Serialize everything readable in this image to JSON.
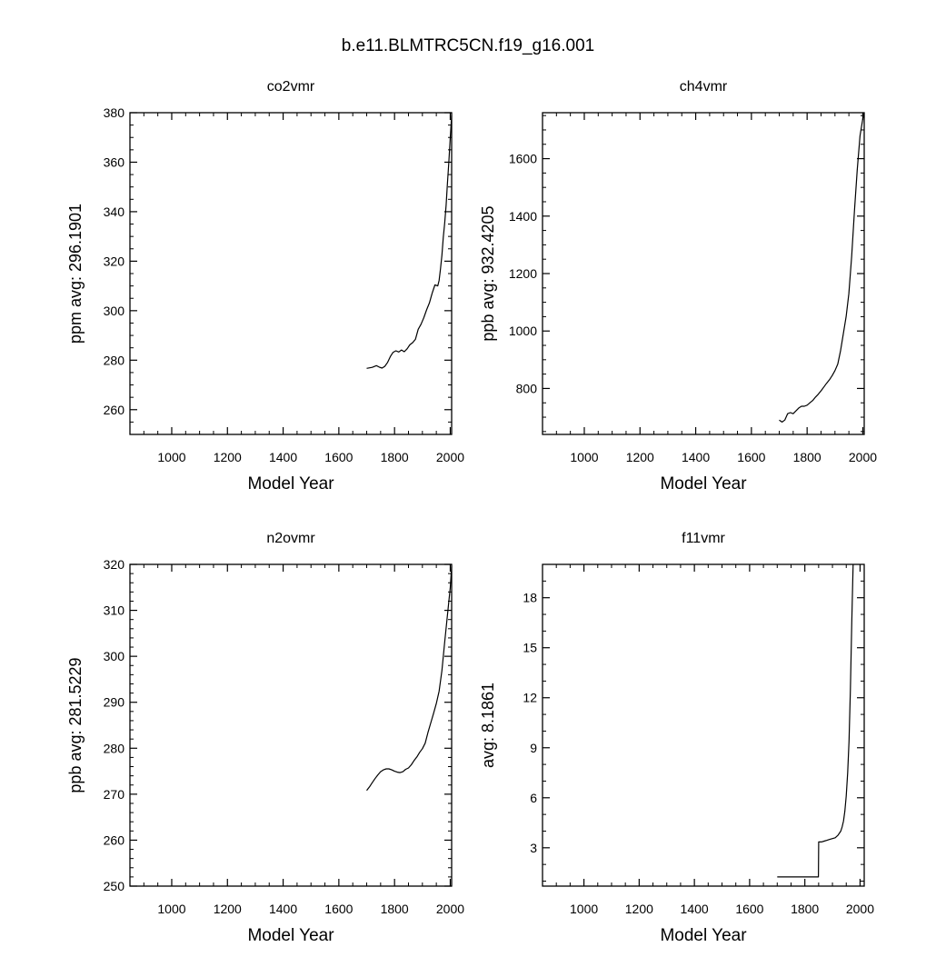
{
  "page": {
    "title": "b.e11.BLMTRC5CN.f19_g16.001"
  },
  "chart_data": [
    {
      "type": "line",
      "title": "co2vmr",
      "xlabel": "Model Year",
      "ylabel": "ppm  avg:    296.1901",
      "xlim": [
        850,
        2005
      ],
      "ylim": [
        250,
        380
      ],
      "x_ticks": [
        1000,
        1200,
        1400,
        1600,
        1800,
        2000
      ],
      "y_ticks": [
        260,
        280,
        300,
        320,
        340,
        360,
        380
      ],
      "x_minor": 50,
      "y_minor": 5,
      "series": [
        {
          "x": [
            1700,
            1720,
            1735,
            1745,
            1755,
            1765,
            1775,
            1785,
            1795,
            1805,
            1815,
            1825,
            1835,
            1845,
            1855,
            1865,
            1875,
            1885,
            1895,
            1905,
            1915,
            1925,
            1935,
            1945,
            1955,
            1960,
            1965,
            1970,
            1975,
            1980,
            1985,
            1990,
            1995,
            2000,
            2005
          ],
          "values": [
            276.7,
            277.1,
            277.8,
            277.2,
            276.8,
            277.5,
            279.1,
            281.5,
            283.2,
            283.8,
            283.3,
            284.1,
            283.4,
            284.6,
            286.2,
            287.1,
            288.5,
            292.5,
            294.5,
            297.2,
            300.3,
            303.1,
            307.0,
            310.4,
            310.0,
            312.2,
            316.8,
            322.4,
            329.6,
            335.2,
            342.5,
            351.7,
            360.0,
            370.0,
            378.8
          ]
        }
      ]
    },
    {
      "type": "line",
      "title": "ch4vmr",
      "xlabel": "Model Year",
      "ylabel": "ppb  avg:    932.4205",
      "xlim": [
        850,
        2005
      ],
      "ylim": [
        640,
        1760
      ],
      "x_ticks": [
        1000,
        1200,
        1400,
        1600,
        1800,
        2000
      ],
      "y_ticks": [
        800,
        1000,
        1200,
        1400,
        1600
      ],
      "x_minor": 50,
      "y_minor": 50,
      "series": [
        {
          "x": [
            1700,
            1710,
            1720,
            1730,
            1740,
            1750,
            1760,
            1770,
            1780,
            1790,
            1800,
            1810,
            1820,
            1830,
            1840,
            1850,
            1860,
            1870,
            1880,
            1890,
            1900,
            1910,
            1920,
            1930,
            1940,
            1950,
            1960,
            1970,
            1980,
            1990,
            2000,
            2005
          ],
          "values": [
            690,
            683,
            690,
            712,
            716,
            712,
            722,
            732,
            738,
            738,
            742,
            750,
            758,
            770,
            780,
            792,
            805,
            818,
            830,
            845,
            862,
            885,
            930,
            990,
            1050,
            1130,
            1260,
            1420,
            1560,
            1680,
            1740,
            1760
          ]
        }
      ]
    },
    {
      "type": "line",
      "title": "n2ovmr",
      "xlabel": "Model Year",
      "ylabel": "ppb  avg:    281.5229",
      "xlim": [
        850,
        2005
      ],
      "ylim": [
        250,
        320
      ],
      "x_ticks": [
        1000,
        1200,
        1400,
        1600,
        1800,
        2000
      ],
      "y_ticks": [
        250,
        260,
        270,
        280,
        290,
        300,
        310,
        320
      ],
      "x_minor": 50,
      "y_minor": 2,
      "series": [
        {
          "x": [
            1700,
            1710,
            1720,
            1730,
            1740,
            1750,
            1760,
            1770,
            1780,
            1790,
            1800,
            1810,
            1820,
            1830,
            1840,
            1850,
            1860,
            1870,
            1880,
            1890,
            1900,
            1910,
            1920,
            1930,
            1940,
            1950,
            1960,
            1970,
            1980,
            1990,
            2000,
            2005
          ],
          "values": [
            270.8,
            271.6,
            272.5,
            273.4,
            274.2,
            274.9,
            275.3,
            275.5,
            275.5,
            275.3,
            275.0,
            274.8,
            274.7,
            274.9,
            275.4,
            275.7,
            276.4,
            277.3,
            278.1,
            279.1,
            279.9,
            281.1,
            283.4,
            285.5,
            287.6,
            289.7,
            292.4,
            296.9,
            303.0,
            309.0,
            315.0,
            319.5
          ]
        }
      ]
    },
    {
      "type": "line",
      "title": "f11vmr",
      "xlabel": "Model Year",
      "ylabel": "avg:      8.1861",
      "xlim": [
        850,
        2015
      ],
      "ylim": [
        0.7,
        20
      ],
      "x_ticks": [
        1000,
        1200,
        1400,
        1600,
        1800,
        2000
      ],
      "y_ticks": [
        3,
        6,
        9,
        12,
        15,
        18
      ],
      "x_minor": 50,
      "y_minor": 1,
      "series": [
        {
          "x": [
            1700,
            1849,
            1850,
            1860,
            1870,
            1880,
            1890,
            1900,
            1910,
            1920,
            1930,
            1935,
            1940,
            1945,
            1950,
            1955,
            1960,
            1965,
            1970,
            1975
          ],
          "values": [
            1.25,
            1.25,
            3.35,
            3.35,
            3.4,
            3.45,
            3.5,
            3.55,
            3.6,
            3.75,
            4.0,
            4.25,
            4.6,
            5.2,
            6.1,
            7.5,
            9.4,
            12.5,
            16.5,
            20.0
          ]
        }
      ]
    }
  ]
}
